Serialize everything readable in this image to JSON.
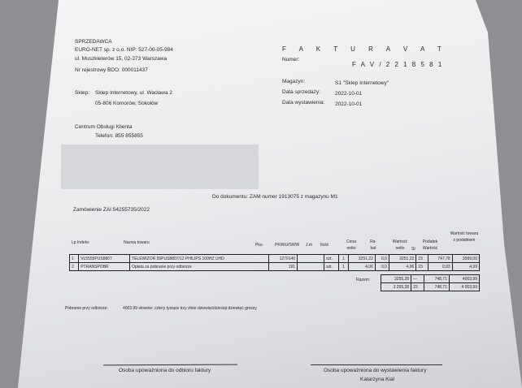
{
  "seller": {
    "heading": "SPRZEDAWCA",
    "line1": "EURO-NET sp. z o.o. NIP: 527-00-05-984",
    "line2": "ul. Muszkieterów 15, 02-273 Warszawa",
    "line3": "Nr rejestrowy BDO: 000011437"
  },
  "shop": {
    "label": "Sklep:",
    "line1": "Sklep Internetowy, ul. Wacława 2",
    "line2": "05-806 Komorów, Sokołów"
  },
  "support": {
    "title": "Centrum Obsługi Klienta",
    "phone": "Telefon: 855 855855"
  },
  "invoice": {
    "title": "F A K T U R A   V A T",
    "number_label": "Numer:",
    "number": "F A V / 2 2 1 8 5 8 1",
    "warehouse_label": "Magazyn:",
    "warehouse": "S1 \"Sklep Internetowy\"",
    "sale_date_label": "Data sprzedaży:",
    "sale_date": "2022-10-01",
    "issue_date_label": "Data wystawienia:",
    "issue_date": "2022-10-01"
  },
  "doc_ref": "Do dokumentu: ZAM numer 1913075 z magazynu M1",
  "order": "Zamówienie ZAI 54255735/2022",
  "table": {
    "headers": [
      "Lp Indeks",
      "Nazwa towaru",
      "Pku",
      "PKWiU/SWW",
      "J.m",
      "Ilość",
      "Cena netto",
      "Ra-bat",
      "Wartość netto",
      "St",
      "Podatek Wartość",
      "Wartość towaru z podatkiem"
    ],
    "rows": [
      [
        "1",
        "VL5555PUS8807",
        "TELEWIZOR 55PUS8807/12 PHILIPS 100HZ UHD",
        "1270146",
        "",
        "szt.",
        "1",
        "3251,22",
        "0,0",
        "3251,22",
        "23",
        "747,78",
        "3999,00"
      ],
      [
        "2",
        "PTRANSPOBR",
        "Opłata za pobranie przy odbiorze",
        "191",
        "",
        "szt.",
        "1",
        "4,06",
        "0,0",
        "4,06",
        "23",
        "0,93",
        "4,99"
      ]
    ],
    "sum_label": "Razem:",
    "sum": [
      "3255,28",
      "—",
      "748,71",
      "4003,99"
    ],
    "vat": [
      "3 255,28",
      "23",
      "748,71",
      "4 003,99"
    ]
  },
  "cod": {
    "label": "Pobranie przy odbiorze:",
    "value": "4003.99 słownie: cztery tysiące trzy złote dziewięćdziesiąt dziewięć groszy"
  },
  "signatures": {
    "receiver": "Osoba upoważniona do odbioru faktury",
    "issuer": "Osoba upoważniona do wystawienia faktury",
    "issuer_name": "Katarzyna Kiał"
  }
}
